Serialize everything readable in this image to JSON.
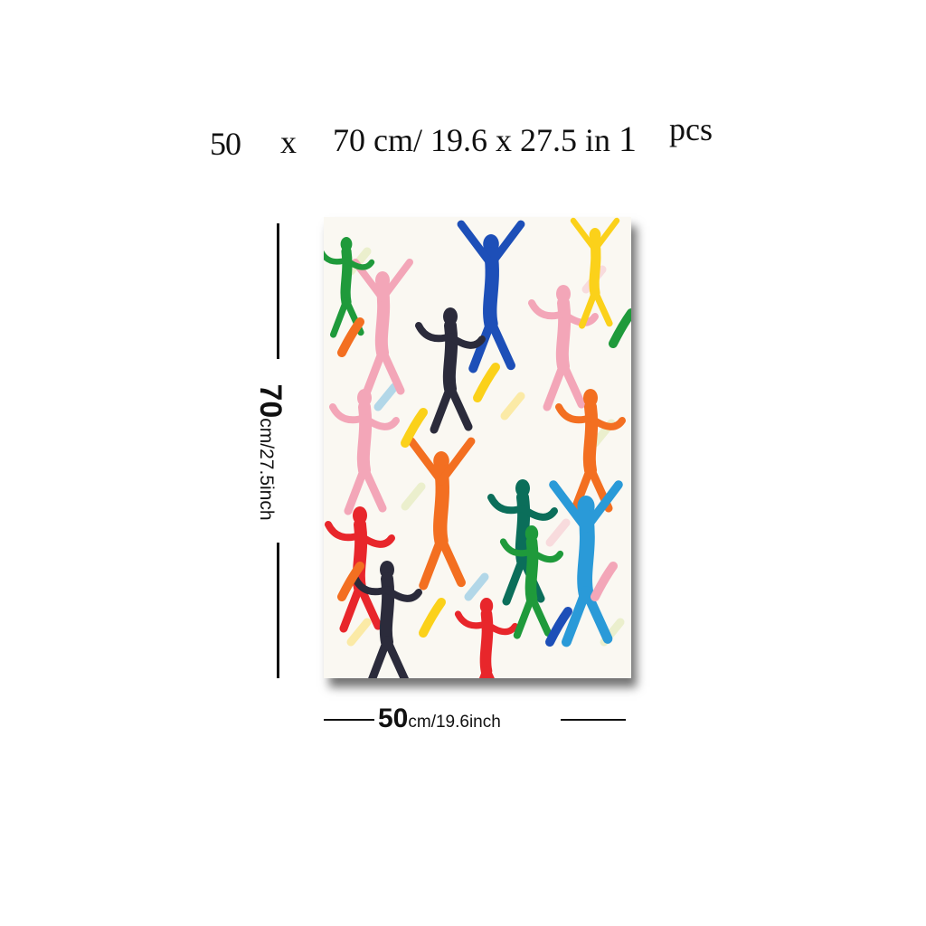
{
  "title": {
    "part1": "50",
    "part2": "x",
    "part3": "70 cm/ 19.6 x 27.5 in",
    "quantity_number": "1",
    "quantity_unit": "pcs"
  },
  "height_label": {
    "number": "70",
    "unit": "cm/27.5inch"
  },
  "width_label": {
    "number": "50",
    "unit": "cm/19.6inch"
  },
  "artwork": {
    "palette": [
      "#e8262b",
      "#f36f21",
      "#fbd11a",
      "#1f9a3b",
      "#0b6e5a",
      "#1d4fb8",
      "#2a9ad8",
      "#f3a6b8",
      "#2b2b3b",
      "#cfe08a"
    ]
  }
}
